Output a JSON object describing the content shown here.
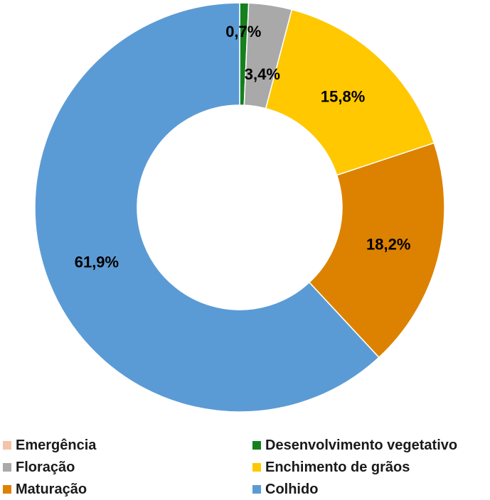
{
  "chart_data": {
    "type": "pie",
    "variant": "donut",
    "title": "",
    "categories": [
      "Emergência",
      "Desenvolvimento vegetativo",
      "Floração",
      "Enchimento de grãos",
      "Maturação",
      "Colhido"
    ],
    "values": [
      0.0,
      0.7,
      3.4,
      15.8,
      18.2,
      61.9
    ],
    "value_labels": [
      "",
      "0,7%",
      "3,4%",
      "15,8%",
      "18,2%",
      "61,9%"
    ],
    "unit": "%",
    "colors": [
      "#f4c4a8",
      "#16801e",
      "#a9a9a9",
      "#ffc800",
      "#dc8200",
      "#5b9bd5"
    ],
    "start_angle": "12 o'clock",
    "direction": "clockwise",
    "legend_position": "bottom",
    "legend_columns": 2
  }
}
